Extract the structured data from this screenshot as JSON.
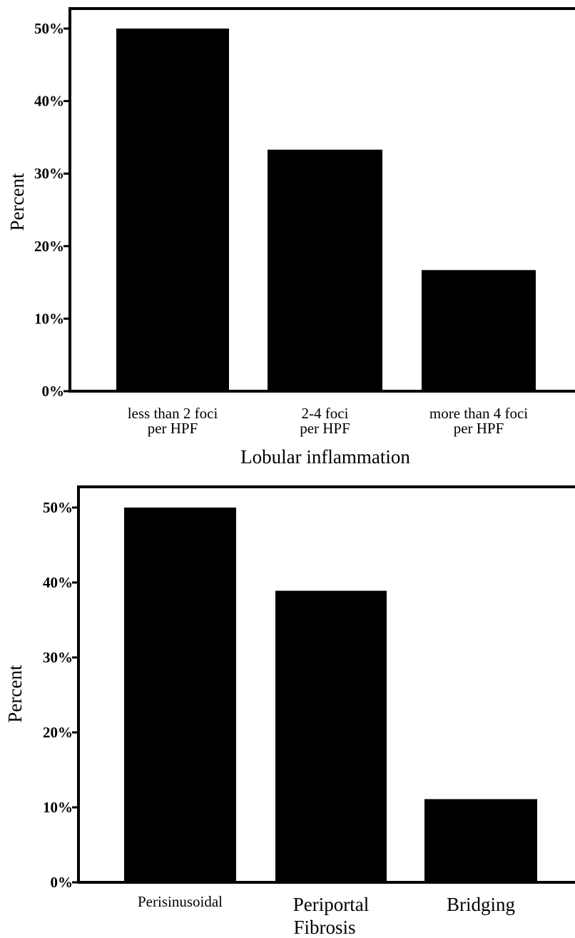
{
  "chart_data": [
    {
      "type": "bar",
      "categories": [
        [
          "less than 2 foci",
          "per HPF"
        ],
        [
          "2-4 foci",
          "per HPF"
        ],
        [
          "more than 4 foci",
          "per HPF"
        ]
      ],
      "values": [
        50.0,
        33.3,
        16.7
      ],
      "title": "",
      "xlabel": "Lobular inflammation",
      "ylabel": "Percent",
      "ylim": [
        0,
        50
      ],
      "yticks": [
        "0%",
        "10%",
        "20%",
        "30%",
        "40%",
        "50%"
      ],
      "bar_color": "#000000",
      "grid": false
    },
    {
      "type": "bar",
      "categories": [
        [
          "Perisinusoidal"
        ],
        [
          "Periportal"
        ],
        [
          "Bridging"
        ]
      ],
      "values": [
        50.0,
        38.9,
        11.1
      ],
      "title": "",
      "xlabel": "Fibrosis",
      "ylabel": "Percent",
      "ylim": [
        0,
        50
      ],
      "yticks": [
        "0%",
        "10%",
        "20%",
        "30%",
        "40%",
        "50%"
      ],
      "bar_color": "#000000",
      "grid": false
    }
  ]
}
